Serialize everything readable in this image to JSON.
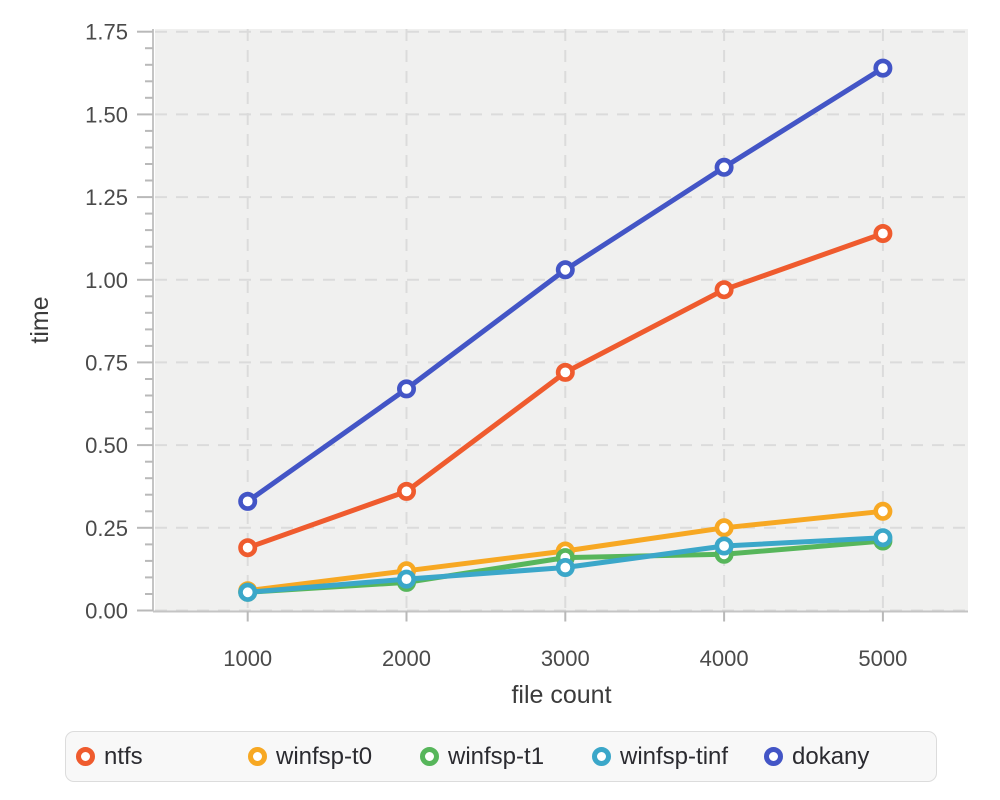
{
  "chart_data": {
    "type": "line",
    "title": "",
    "xlabel": "file count",
    "ylabel": "time",
    "x": [
      1000,
      2000,
      3000,
      4000,
      5000
    ],
    "x_tick_labels": [
      "1000",
      "2000",
      "3000",
      "4000",
      "5000"
    ],
    "y_tick_labels": [
      "0.00",
      "0.25",
      "0.50",
      "0.75",
      "1.00",
      "1.25",
      "1.50",
      "1.75"
    ],
    "ylim": [
      0,
      1.75
    ],
    "y_major_step": 0.25,
    "y_minor_step": 0.05,
    "grid": "dashed",
    "legend_position": "bottom",
    "series": [
      {
        "name": "ntfs",
        "color": "#EF5B2E",
        "values": [
          0.19,
          0.36,
          0.72,
          0.97,
          1.14
        ]
      },
      {
        "name": "winfsp-t0",
        "color": "#F7A823",
        "values": [
          0.06,
          0.12,
          0.18,
          0.25,
          0.3
        ]
      },
      {
        "name": "winfsp-t1",
        "color": "#57B65B",
        "values": [
          0.055,
          0.085,
          0.16,
          0.17,
          0.21
        ]
      },
      {
        "name": "winfsp-tinf",
        "color": "#3BA7C9",
        "values": [
          0.055,
          0.095,
          0.13,
          0.195,
          0.22
        ]
      },
      {
        "name": "dokany",
        "color": "#4355C6",
        "values": [
          0.33,
          0.67,
          1.03,
          1.34,
          1.64
        ]
      }
    ],
    "colors": {
      "page_bg": "#FFFFFF",
      "plot_bg": "#F0F0EF",
      "gridline": "#DBDBDB",
      "spine": "#C4C4C4",
      "tick": "#B9B9B9",
      "tick_label": "#4A4A4A",
      "axis_label": "#3B3B3B",
      "marker_fill": "#FFFFFF",
      "legend_bg": "#F8F8F8",
      "legend_border": "#DCDCDC",
      "legend_text": "#2B2B30"
    }
  }
}
